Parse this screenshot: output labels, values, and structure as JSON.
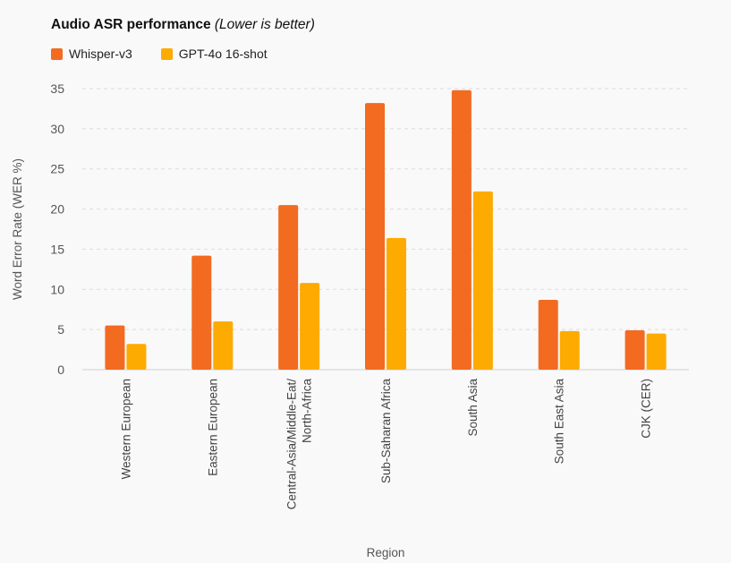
{
  "chart_data": {
    "type": "bar",
    "title": "Audio ASR performance",
    "subtitle": "(Lower is better)",
    "xlabel": "Region",
    "ylabel": "Word Error Rate (WER %)",
    "ylim": [
      0,
      35
    ],
    "yticks": [
      0,
      5,
      10,
      15,
      20,
      25,
      30,
      35
    ],
    "grid": true,
    "legend_position": "top-left",
    "categories": [
      [
        "Western European"
      ],
      [
        "Eastern European"
      ],
      [
        "Central-Asia/Middle-Eat/",
        "North-Africa"
      ],
      [
        "Sub-Saharan Africa"
      ],
      [
        "South Asia"
      ],
      [
        "South East Asia"
      ],
      [
        "CJK (CER)"
      ]
    ],
    "series": [
      {
        "name": "Whisper-v3",
        "color": "#f26b21",
        "values": [
          5.5,
          14.2,
          20.5,
          33.2,
          34.8,
          8.7,
          4.9
        ]
      },
      {
        "name": "GPT-4o 16-shot",
        "color": "#fdab00",
        "values": [
          3.2,
          6.0,
          10.8,
          16.4,
          22.2,
          4.8,
          4.5
        ]
      }
    ]
  }
}
